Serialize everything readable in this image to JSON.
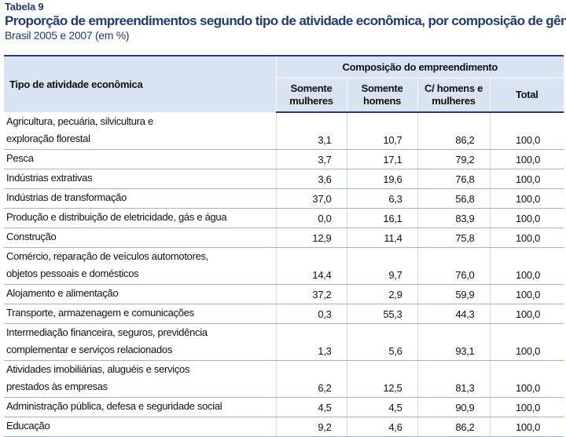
{
  "table_label": "Tabela 9",
  "title": "Proporção de empreendimentos segundo tipo de atividade econômica, por composição de gênero",
  "subtitle": "Brasil 2005 e 2007 (em %)",
  "header": {
    "row_label": "Tipo de atividade econômica",
    "group": "Composição do empreendimento",
    "columns": [
      {
        "line1": "Somente",
        "line2": "mulheres"
      },
      {
        "line1": "Somente",
        "line2": "homens"
      },
      {
        "line1": "C/ homens e",
        "line2": "mulheres"
      },
      {
        "line1": "Total",
        "line2": ""
      }
    ]
  },
  "rows": [
    {
      "label": "Agricultura, pecuária, silvicultura e exploração florestal",
      "lines": [
        "Agricultura, pecuária, silvicultura e",
        "exploração florestal"
      ],
      "values": [
        "3,1",
        "10,7",
        "86,2",
        "100,0"
      ]
    },
    {
      "label": "Pesca",
      "lines": [
        "Pesca"
      ],
      "values": [
        "3,7",
        "17,1",
        "79,2",
        "100,0"
      ]
    },
    {
      "label": "Indústrias extrativas",
      "lines": [
        "Indústrias extrativas"
      ],
      "values": [
        "3,6",
        "19,6",
        "76,8",
        "100,0"
      ]
    },
    {
      "label": "Indústrias de transformação",
      "lines": [
        "Indústrias de transformação"
      ],
      "values": [
        "37,0",
        "6,3",
        "56,8",
        "100,0"
      ]
    },
    {
      "label": "Produção e distribuição de eletricidade, gás e água",
      "lines": [
        "Produção e distribuição de eletricidade, gás e água"
      ],
      "values": [
        "0,0",
        "16,1",
        "83,9",
        "100,0"
      ]
    },
    {
      "label": "Construção",
      "lines": [
        "Construção"
      ],
      "values": [
        "12,9",
        "11,4",
        "75,8",
        "100,0"
      ]
    },
    {
      "label": "Comércio, reparação de veículos automotores, objetos pessoais e domésticos",
      "lines": [
        "Comércio, reparação de veículos automotores,",
        "objetos pessoais e domésticos"
      ],
      "values": [
        "14,4",
        "9,7",
        "76,0",
        "100,0"
      ]
    },
    {
      "label": "Alojamento e alimentação",
      "lines": [
        "Alojamento e alimentação"
      ],
      "values": [
        "37,2",
        "2,9",
        "59,9",
        "100,0"
      ]
    },
    {
      "label": "Transporte, armazenagem e comunicações",
      "lines": [
        "Transporte, armazenagem e comunicações"
      ],
      "values": [
        "0,3",
        "55,3",
        "44,3",
        "100,0"
      ]
    },
    {
      "label": "Intermediação financeira, seguros, previdência complementar e serviços relacionados",
      "lines": [
        "Intermediação financeira, seguros, previdência",
        "complementar e serviços relacionados"
      ],
      "values": [
        "1,3",
        "5,6",
        "93,1",
        "100,0"
      ]
    },
    {
      "label": "Atividades imobiliárias, aluguéis e serviços prestados às empresas",
      "lines": [
        "Atividades imobiliárias, aluguéis e serviços",
        "prestados às empresas"
      ],
      "values": [
        "6,2",
        "12,5",
        "81,3",
        "100,0"
      ]
    },
    {
      "label": "Administração pública, defesa e seguridade social",
      "lines": [
        "Administração pública, defesa e seguridade social"
      ],
      "values": [
        "4,5",
        "4,5",
        "90,9",
        "100,0"
      ]
    },
    {
      "label": "Educação",
      "lines": [
        "Educação"
      ],
      "values": [
        "9,2",
        "4,6",
        "86,2",
        "100,0"
      ]
    }
  ]
}
